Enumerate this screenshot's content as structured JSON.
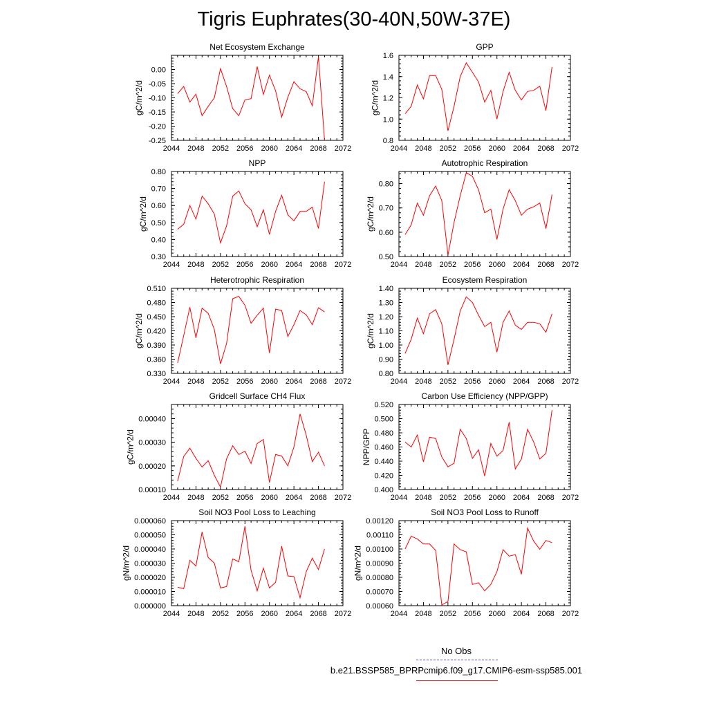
{
  "title": "Tigris Euphrates(30-40N,50W-37E)",
  "colors": {
    "series": "#ff0000",
    "obs": "#4b4bd8",
    "axis": "#000000"
  },
  "legend": {
    "obs_label": "No Obs",
    "case_label": "b.e21.BSSP585_BPRPcmip6.f09_g17.CMIP6-esm-ssp585.001"
  },
  "chart_data": [
    {
      "type": "line",
      "title": "Net Ecosystem Exchange",
      "xlabel": "",
      "ylabel": "gC/m^2/d",
      "xlim": [
        2044,
        2072
      ],
      "xticks": [
        2044,
        2048,
        2052,
        2056,
        2060,
        2064,
        2068,
        2072
      ],
      "ylim": [
        -0.25,
        0.05
      ],
      "yticks": [
        -0.25,
        -0.2,
        -0.15,
        -0.1,
        -0.05,
        0.0
      ],
      "ytick_labels": [
        "-0.25",
        "-0.20",
        "-0.15",
        "-0.10",
        "-0.05",
        "0.00"
      ],
      "x": [
        2045,
        2046,
        2047,
        2048,
        2049,
        2050,
        2051,
        2052,
        2053,
        2054,
        2055,
        2056,
        2057,
        2058,
        2059,
        2060,
        2061,
        2062,
        2063,
        2064,
        2065,
        2066,
        2067,
        2068,
        2069
      ],
      "values": [
        -0.085,
        -0.06,
        -0.115,
        -0.087,
        -0.163,
        -0.13,
        -0.1,
        0.003,
        -0.06,
        -0.138,
        -0.163,
        -0.107,
        -0.103,
        0.01,
        -0.088,
        -0.02,
        -0.075,
        -0.168,
        -0.098,
        -0.043,
        -0.068,
        -0.078,
        -0.128,
        0.045,
        -0.25
      ]
    },
    {
      "type": "line",
      "title": "GPP",
      "xlabel": "",
      "ylabel": "gC/m^2/d",
      "xlim": [
        2044,
        2072
      ],
      "xticks": [
        2044,
        2048,
        2052,
        2056,
        2060,
        2064,
        2068,
        2072
      ],
      "ylim": [
        0.8,
        1.6
      ],
      "yticks": [
        0.8,
        1.0,
        1.2,
        1.4,
        1.6
      ],
      "ytick_labels": [
        "0.8",
        "1.0",
        "1.2",
        "1.4",
        "1.6"
      ],
      "x": [
        2045,
        2046,
        2047,
        2048,
        2049,
        2050,
        2051,
        2052,
        2053,
        2054,
        2055,
        2056,
        2057,
        2058,
        2059,
        2060,
        2061,
        2062,
        2063,
        2064,
        2065,
        2066,
        2067,
        2068,
        2069
      ],
      "values": [
        1.05,
        1.12,
        1.32,
        1.19,
        1.41,
        1.41,
        1.28,
        0.89,
        1.12,
        1.4,
        1.53,
        1.44,
        1.35,
        1.16,
        1.27,
        1.0,
        1.26,
        1.44,
        1.27,
        1.18,
        1.26,
        1.27,
        1.31,
        1.08,
        1.49
      ]
    },
    {
      "type": "line",
      "title": "NPP",
      "xlabel": "",
      "ylabel": "gC/m^2/d",
      "xlim": [
        2044,
        2072
      ],
      "xticks": [
        2044,
        2048,
        2052,
        2056,
        2060,
        2064,
        2068,
        2072
      ],
      "ylim": [
        0.3,
        0.8
      ],
      "yticks": [
        0.3,
        0.4,
        0.5,
        0.6,
        0.7,
        0.8
      ],
      "ytick_labels": [
        "0.30",
        "0.40",
        "0.50",
        "0.60",
        "0.70",
        "0.80"
      ],
      "x": [
        2045,
        2046,
        2047,
        2048,
        2049,
        2050,
        2051,
        2052,
        2053,
        2054,
        2055,
        2056,
        2057,
        2058,
        2059,
        2060,
        2061,
        2062,
        2063,
        2064,
        2065,
        2066,
        2067,
        2068,
        2069
      ],
      "values": [
        0.46,
        0.49,
        0.6,
        0.52,
        0.655,
        0.61,
        0.55,
        0.38,
        0.48,
        0.655,
        0.685,
        0.61,
        0.575,
        0.475,
        0.575,
        0.43,
        0.565,
        0.66,
        0.545,
        0.51,
        0.565,
        0.565,
        0.59,
        0.465,
        0.74
      ]
    },
    {
      "type": "line",
      "title": "Autotrophic Respiration",
      "xlabel": "",
      "ylabel": "gC/m^2/d",
      "xlim": [
        2044,
        2072
      ],
      "xticks": [
        2044,
        2048,
        2052,
        2056,
        2060,
        2064,
        2068,
        2072
      ],
      "ylim": [
        0.5,
        0.85
      ],
      "yticks": [
        0.5,
        0.6,
        0.7,
        0.8
      ],
      "ytick_labels": [
        "0.50",
        "0.60",
        "0.70",
        "0.80"
      ],
      "x": [
        2045,
        2046,
        2047,
        2048,
        2049,
        2050,
        2051,
        2052,
        2053,
        2054,
        2055,
        2056,
        2057,
        2058,
        2059,
        2060,
        2061,
        2062,
        2063,
        2064,
        2065,
        2066,
        2067,
        2068,
        2069
      ],
      "values": [
        0.59,
        0.63,
        0.72,
        0.67,
        0.75,
        0.79,
        0.73,
        0.505,
        0.64,
        0.75,
        0.845,
        0.83,
        0.775,
        0.68,
        0.695,
        0.57,
        0.695,
        0.775,
        0.73,
        0.67,
        0.695,
        0.705,
        0.72,
        0.615,
        0.755
      ]
    },
    {
      "type": "line",
      "title": "Heterotrophic Respiration",
      "xlabel": "",
      "ylabel": "gC/m^2/d",
      "xlim": [
        2044,
        2072
      ],
      "xticks": [
        2044,
        2048,
        2052,
        2056,
        2060,
        2064,
        2068,
        2072
      ],
      "ylim": [
        0.33,
        0.51
      ],
      "yticks": [
        0.33,
        0.36,
        0.39,
        0.42,
        0.45,
        0.48,
        0.51
      ],
      "ytick_labels": [
        "0.330",
        "0.360",
        "0.390",
        "0.420",
        "0.450",
        "0.480",
        "0.510"
      ],
      "x": [
        2045,
        2046,
        2047,
        2048,
        2049,
        2050,
        2051,
        2052,
        2053,
        2054,
        2055,
        2056,
        2057,
        2058,
        2059,
        2060,
        2061,
        2062,
        2063,
        2064,
        2065,
        2066,
        2067,
        2068,
        2069
      ],
      "values": [
        0.352,
        0.41,
        0.47,
        0.405,
        0.468,
        0.457,
        0.423,
        0.35,
        0.393,
        0.488,
        0.493,
        0.474,
        0.436,
        0.453,
        0.468,
        0.373,
        0.466,
        0.463,
        0.408,
        0.433,
        0.463,
        0.454,
        0.433,
        0.469,
        0.46
      ]
    },
    {
      "type": "line",
      "title": "Ecosystem Respiration",
      "xlabel": "",
      "ylabel": "gC/m^2/d",
      "xlim": [
        2044,
        2072
      ],
      "xticks": [
        2044,
        2048,
        2052,
        2056,
        2060,
        2064,
        2068,
        2072
      ],
      "ylim": [
        0.8,
        1.4
      ],
      "yticks": [
        0.8,
        0.9,
        1.0,
        1.1,
        1.2,
        1.3,
        1.4
      ],
      "ytick_labels": [
        "0.80",
        "0.90",
        "1.00",
        "1.10",
        "1.20",
        "1.30",
        "1.40"
      ],
      "x": [
        2045,
        2046,
        2047,
        2048,
        2049,
        2050,
        2051,
        2052,
        2053,
        2054,
        2055,
        2056,
        2057,
        2058,
        2059,
        2060,
        2061,
        2062,
        2063,
        2064,
        2065,
        2066,
        2067,
        2068,
        2069
      ],
      "values": [
        0.94,
        1.04,
        1.19,
        1.08,
        1.22,
        1.25,
        1.15,
        0.86,
        1.04,
        1.24,
        1.34,
        1.3,
        1.21,
        1.13,
        1.16,
        0.95,
        1.16,
        1.24,
        1.14,
        1.11,
        1.16,
        1.16,
        1.15,
        1.09,
        1.22
      ]
    },
    {
      "type": "line",
      "title": "Gridcell Surface CH4 Flux",
      "xlabel": "",
      "ylabel": "gC/m^2/d",
      "xlim": [
        2044,
        2072
      ],
      "xticks": [
        2044,
        2048,
        2052,
        2056,
        2060,
        2064,
        2068,
        2072
      ],
      "ylim": [
        0.0001,
        0.00046
      ],
      "yticks": [
        0.0001,
        0.0002,
        0.0003,
        0.0004
      ],
      "ytick_labels": [
        "0.00010",
        "0.00020",
        "0.00030",
        "0.00040"
      ],
      "x": [
        2045,
        2046,
        2047,
        2048,
        2049,
        2050,
        2051,
        2052,
        2053,
        2054,
        2055,
        2056,
        2057,
        2058,
        2059,
        2060,
        2061,
        2062,
        2063,
        2064,
        2065,
        2066,
        2067,
        2068,
        2069
      ],
      "values": [
        0.000135,
        0.00024,
        0.000275,
        0.000232,
        0.000195,
        0.000222,
        0.00016,
        0.00011,
        0.00023,
        0.000285,
        0.000248,
        0.000262,
        0.00021,
        0.000295,
        0.000312,
        0.00013,
        0.000248,
        0.000242,
        0.0002,
        0.00028,
        0.00042,
        0.00033,
        0.000218,
        0.000258,
        0.0002
      ]
    },
    {
      "type": "line",
      "title": "Carbon Use Efficiency (NPP/GPP)",
      "xlabel": "",
      "ylabel": "NPP/GPP",
      "xlim": [
        2044,
        2072
      ],
      "xticks": [
        2044,
        2048,
        2052,
        2056,
        2060,
        2064,
        2068,
        2072
      ],
      "ylim": [
        0.4,
        0.52
      ],
      "yticks": [
        0.4,
        0.42,
        0.44,
        0.46,
        0.48,
        0.5,
        0.52
      ],
      "ytick_labels": [
        "0.400",
        "0.420",
        "0.440",
        "0.460",
        "0.480",
        "0.500",
        "0.520"
      ],
      "x": [
        2045,
        2046,
        2047,
        2048,
        2049,
        2050,
        2051,
        2052,
        2053,
        2054,
        2055,
        2056,
        2057,
        2058,
        2059,
        2060,
        2061,
        2062,
        2063,
        2064,
        2065,
        2066,
        2067,
        2068,
        2069
      ],
      "values": [
        0.467,
        0.46,
        0.477,
        0.439,
        0.474,
        0.472,
        0.446,
        0.432,
        0.437,
        0.485,
        0.472,
        0.444,
        0.456,
        0.419,
        0.465,
        0.447,
        0.455,
        0.495,
        0.429,
        0.443,
        0.485,
        0.467,
        0.443,
        0.451,
        0.512
      ]
    },
    {
      "type": "line",
      "title": "Soil NO3 Pool Loss to Leaching",
      "xlabel": "",
      "ylabel": "gN/m^2/d",
      "xlim": [
        2044,
        2072
      ],
      "xticks": [
        2044,
        2048,
        2052,
        2056,
        2060,
        2064,
        2068,
        2072
      ],
      "ylim": [
        0.0,
        6e-05
      ],
      "yticks": [
        0.0,
        1e-05,
        2e-05,
        3e-05,
        4e-05,
        5e-05,
        6e-05
      ],
      "ytick_labels": [
        "0.000000",
        "0.000010",
        "0.000020",
        "0.000030",
        "0.000040",
        "0.000050",
        "0.000060"
      ],
      "x": [
        2045,
        2046,
        2047,
        2048,
        2049,
        2050,
        2051,
        2052,
        2053,
        2054,
        2055,
        2056,
        2057,
        2058,
        2059,
        2060,
        2061,
        2062,
        2063,
        2064,
        2065,
        2066,
        2067,
        2068,
        2069
      ],
      "values": [
        1.3e-05,
        1.2e-05,
        3.2e-05,
        2.8e-05,
        5.2e-05,
        3.4e-05,
        3e-05,
        1.25e-05,
        1.35e-05,
        3.3e-05,
        3.1e-05,
        5.6e-05,
        2.5e-05,
        1.05e-05,
        2.65e-05,
        1.25e-05,
        1.65e-05,
        4.2e-05,
        2.1e-05,
        2.05e-05,
        5.5e-06,
        2.4e-05,
        3.35e-05,
        2.55e-05,
        4e-05
      ]
    },
    {
      "type": "line",
      "title": "Soil NO3 Pool Loss to Runoff",
      "xlabel": "",
      "ylabel": "gN/m^2/d",
      "xlim": [
        2044,
        2072
      ],
      "xticks": [
        2044,
        2048,
        2052,
        2056,
        2060,
        2064,
        2068,
        2072
      ],
      "ylim": [
        0.0006,
        0.0012
      ],
      "yticks": [
        0.0006,
        0.0007,
        0.0008,
        0.0009,
        0.001,
        0.0011,
        0.0012
      ],
      "ytick_labels": [
        "0.00060",
        "0.00070",
        "0.00080",
        "0.00090",
        "0.00100",
        "0.00110",
        "0.00120"
      ],
      "x": [
        2045,
        2046,
        2047,
        2048,
        2049,
        2050,
        2051,
        2052,
        2053,
        2054,
        2055,
        2056,
        2057,
        2058,
        2059,
        2060,
        2061,
        2062,
        2063,
        2064,
        2065,
        2066,
        2067,
        2068,
        2069
      ],
      "values": [
        0.001,
        0.00109,
        0.00107,
        0.001035,
        0.001035,
        0.00099,
        0.000605,
        0.00063,
        0.001035,
        0.000995,
        0.00098,
        0.00075,
        0.000762,
        0.000705,
        0.00075,
        0.00084,
        0.000995,
        0.00095,
        0.00096,
        0.000822,
        0.001148,
        0.001055,
        0.000998,
        0.00106,
        0.001045
      ]
    }
  ]
}
